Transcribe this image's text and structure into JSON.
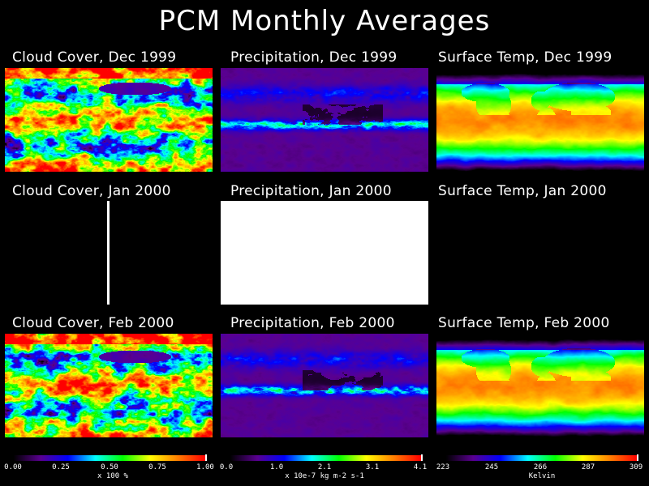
{
  "title": "PCM Monthly Averages",
  "chart_data": {
    "type": "heatmap",
    "title": "PCM Monthly Averages",
    "layout": "3x3 grid (rows = months, columns = variables)",
    "variables": [
      {
        "key": "cloud",
        "name": "Cloud Cover",
        "units": "x 100 %",
        "range": [
          0.0,
          1.0
        ],
        "ticks": [
          "0.00",
          "0.25",
          "0.50",
          "0.75",
          "1.00"
        ]
      },
      {
        "key": "precip",
        "name": "Precipitation",
        "units": "x 10e-7 kg m-2 s-1",
        "range": [
          0.0,
          4.1
        ],
        "ticks": [
          "0.0",
          "1.0",
          "2.1",
          "3.1",
          "4.1"
        ]
      },
      {
        "key": "temp",
        "name": "Surface Temp",
        "units": "Kelvin",
        "range": [
          223,
          309
        ],
        "ticks": [
          "223",
          "245",
          "266",
          "287",
          "309"
        ]
      }
    ],
    "months": [
      "Dec 1999",
      "Jan 2000",
      "Feb 2000"
    ],
    "panels": [
      {
        "row": 0,
        "col": 0,
        "title": "Cloud Cover, Dec 1999",
        "state": "map"
      },
      {
        "row": 0,
        "col": 1,
        "title": "Precipitation, Dec 1999",
        "state": "map"
      },
      {
        "row": 0,
        "col": 2,
        "title": "Surface Temp, Dec 1999",
        "state": "map"
      },
      {
        "row": 1,
        "col": 0,
        "title": "Cloud Cover, Jan 2000",
        "state": "vertical-line"
      },
      {
        "row": 1,
        "col": 1,
        "title": "Precipitation, Jan 2000",
        "state": "white-fill"
      },
      {
        "row": 1,
        "col": 2,
        "title": "Surface Temp, Jan 2000",
        "state": "empty"
      },
      {
        "row": 2,
        "col": 0,
        "title": "Cloud Cover, Feb 2000",
        "state": "map"
      },
      {
        "row": 2,
        "col": 1,
        "title": "Precipitation, Feb 2000",
        "state": "map"
      },
      {
        "row": 2,
        "col": 2,
        "title": "Surface Temp, Feb 2000",
        "state": "map"
      }
    ],
    "colormap": [
      "#000000",
      "#5a0090",
      "#0000ff",
      "#00ffff",
      "#00ff00",
      "#ffff00",
      "#ff8000",
      "#ff0000"
    ]
  }
}
